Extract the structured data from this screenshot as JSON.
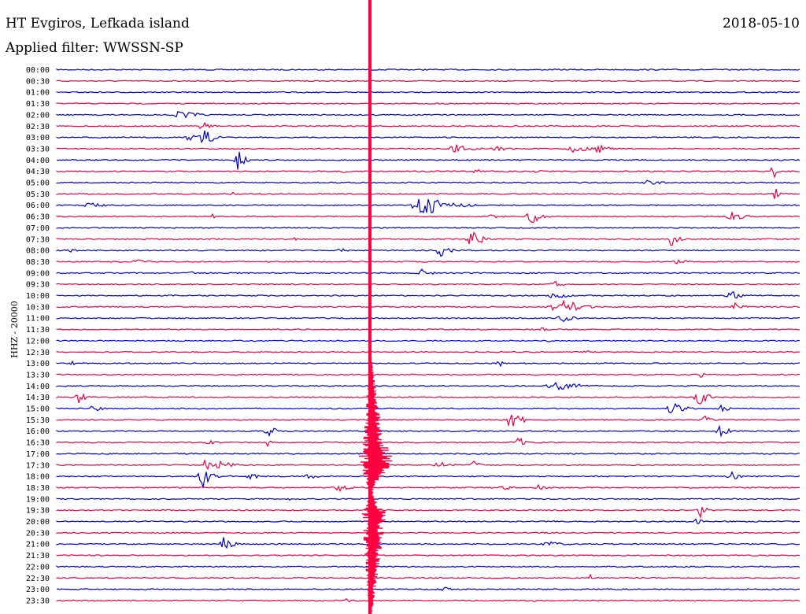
{
  "header": {
    "station": "HT Evgiros, Lefkada island",
    "date": "2018-05-10",
    "filter": "Applied filter: WWSSN-SP"
  },
  "channel_label": "HHZ - 20000",
  "colors": {
    "blue": "#0000d0",
    "red": "#ee0044",
    "marker": "#ff0040"
  },
  "rows": [
    "00:00",
    "00:30",
    "01:00",
    "01:30",
    "02:00",
    "02:30",
    "03:00",
    "03:30",
    "04:00",
    "04:30",
    "05:00",
    "05:30",
    "06:00",
    "06:30",
    "07:00",
    "07:30",
    "08:00",
    "08:30",
    "09:00",
    "09:30",
    "10:00",
    "10:30",
    "11:00",
    "11:30",
    "12:00",
    "12:30",
    "13:00",
    "13:30",
    "14:00",
    "14:30",
    "15:00",
    "15:30",
    "16:00",
    "16:30",
    "17:00",
    "17:30",
    "18:00",
    "18:30",
    "19:00",
    "19:30",
    "20:00",
    "20:30",
    "21:00",
    "21:30",
    "22:00",
    "22:30",
    "23:00",
    "23:30"
  ]
}
